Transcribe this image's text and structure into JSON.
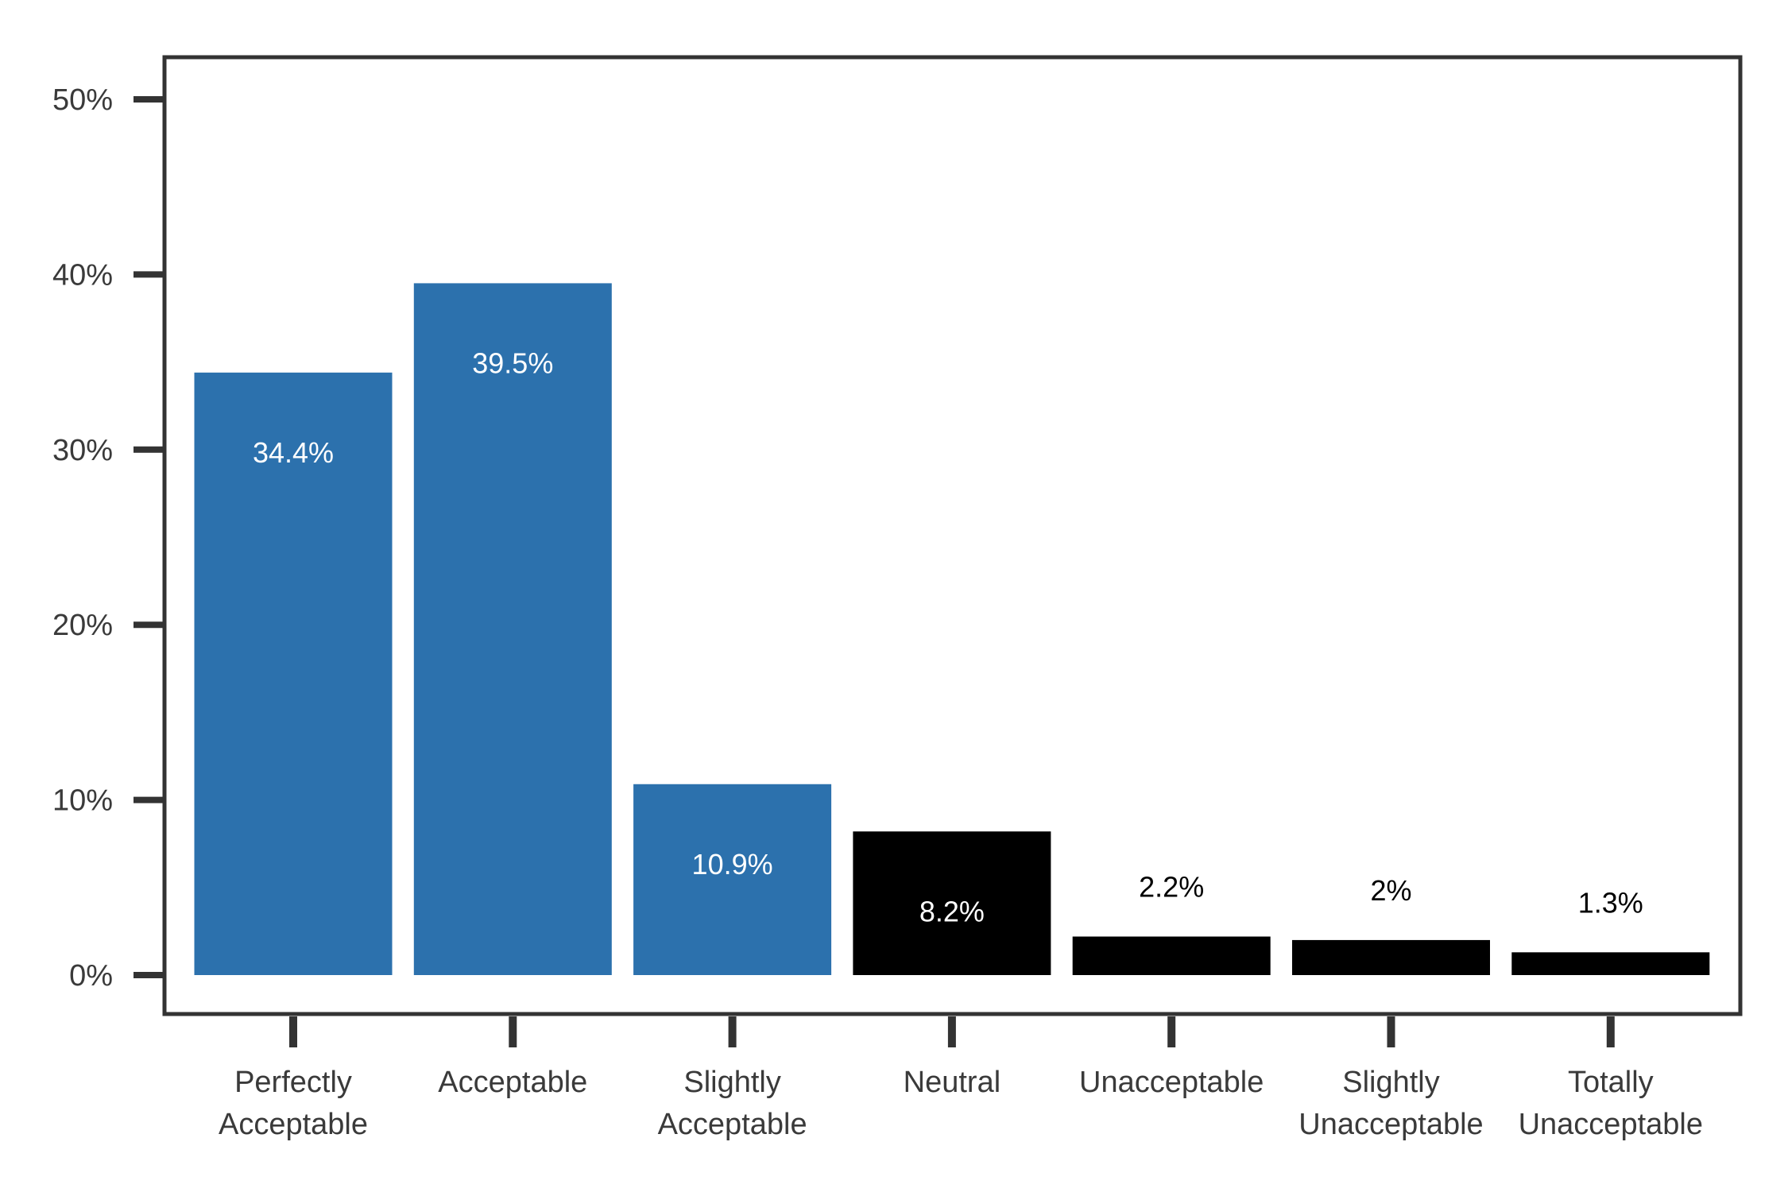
{
  "chart_data": {
    "type": "bar",
    "title": "",
    "xlabel": "",
    "ylabel": "",
    "ylim": [
      0,
      50
    ],
    "yticks": [
      0,
      10,
      20,
      30,
      40,
      50
    ],
    "ytick_labels": [
      "0%",
      "10%",
      "20%",
      "30%",
      "40%",
      "50%"
    ],
    "grid": false,
    "legend": "none",
    "categories": [
      [
        "Perfectly",
        "Acceptable"
      ],
      [
        "Acceptable"
      ],
      [
        "Slightly",
        "Acceptable"
      ],
      [
        "Neutral"
      ],
      [
        "Unacceptable"
      ],
      [
        "Slightly",
        "Unacceptable"
      ],
      [
        "Totally",
        "Unacceptable"
      ]
    ],
    "values": [
      34.4,
      39.5,
      10.9,
      8.2,
      2.2,
      2,
      1.3
    ],
    "value_labels": [
      "34.4%",
      "39.5%",
      "10.9%",
      "8.2%",
      "2.2%",
      "2%",
      "1.3%"
    ],
    "bar_colors": [
      "#2c71ad",
      "#2c71ad",
      "#2c71ad",
      "#000000",
      "#000000",
      "#000000",
      "#000000"
    ],
    "axis_color": "#333333"
  }
}
